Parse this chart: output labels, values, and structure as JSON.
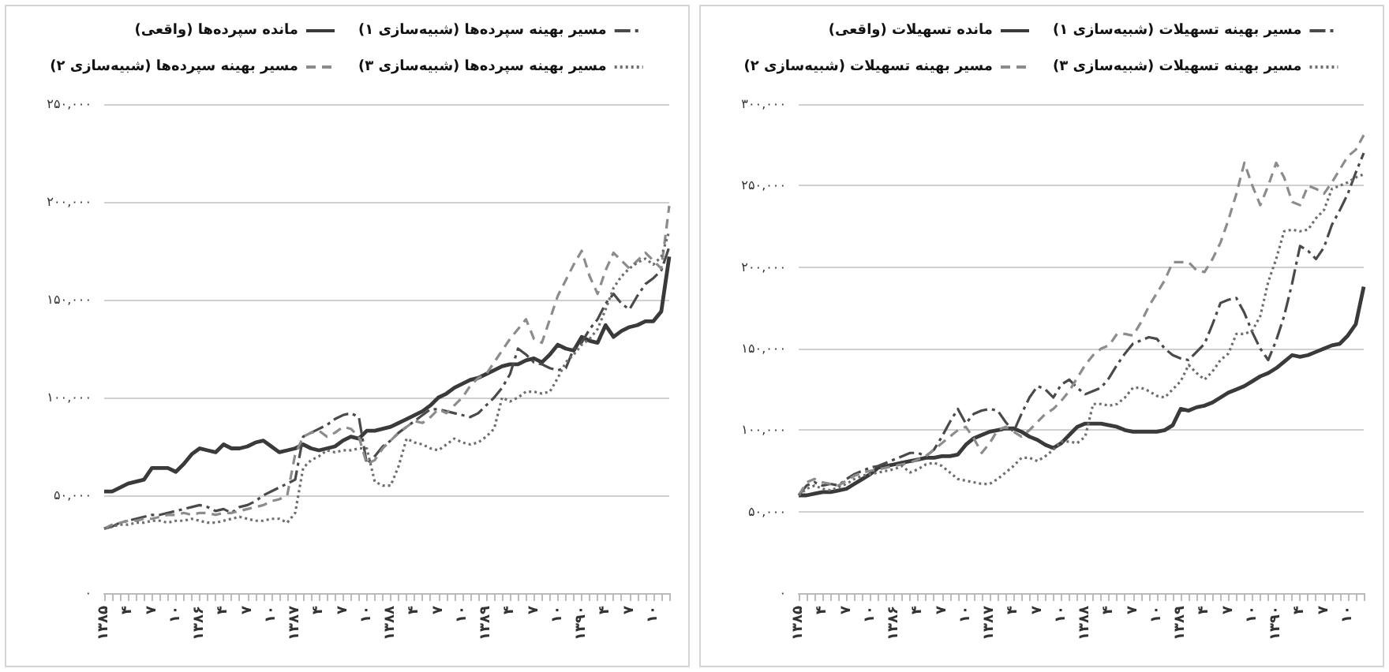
{
  "chart_data": [
    {
      "type": "line",
      "categories": [
        "۱۳۸۵",
        null,
        null,
        "۴",
        null,
        null,
        "۷",
        null,
        null,
        "۱۰",
        null,
        null,
        "۱۳۸۶",
        null,
        null,
        "۴",
        null,
        null,
        "۷",
        null,
        null,
        "۱۰",
        null,
        null,
        "۱۳۸۷",
        null,
        null,
        "۴",
        null,
        null,
        "۷",
        null,
        null,
        "۱۰",
        null,
        null,
        "۱۳۸۸",
        null,
        null,
        "۴",
        null,
        null,
        "۷",
        null,
        null,
        "۱۰",
        null,
        null,
        "۱۳۸۹",
        null,
        null,
        "۴",
        null,
        null,
        "۷",
        null,
        null,
        "۱۰",
        null,
        null,
        "۱۳۹۰",
        null,
        null,
        "۴",
        null,
        null,
        "۷",
        null,
        null,
        "۱۰",
        null,
        null
      ],
      "series": [
        {
          "name": "مانده سپرده‌ها (واقعی)",
          "color": "#3a3a3a",
          "line_style": "solid",
          "values": [
            52000,
            52000,
            54000,
            56000,
            57000,
            58000,
            64000,
            64000,
            64000,
            62000,
            66000,
            71000,
            74000,
            73000,
            72000,
            76000,
            74000,
            74000,
            75000,
            77000,
            78000,
            75000,
            72000,
            73000,
            74000,
            76000,
            74000,
            73000,
            74000,
            75000,
            78000,
            80000,
            79000,
            83000,
            83000,
            84000,
            85000,
            87000,
            89000,
            91000,
            93000,
            96000,
            100000,
            102000,
            105000,
            107000,
            109000,
            110000,
            112000,
            114000,
            116000,
            117000,
            117000,
            119000,
            120000,
            118000,
            122000,
            127000,
            125000,
            124000,
            131000,
            129000,
            128000,
            137000,
            131000,
            134000,
            136000,
            137000,
            139000,
            139000,
            144000,
            172000
          ]
        },
        {
          "name": "مسیر بهینه سپرده‌ها (شبیه‌سازی ۱)",
          "color": "#4a4a4a",
          "line_style": "dashdot",
          "values": [
            33000,
            34000,
            36000,
            37000,
            38000,
            39000,
            40000,
            40000,
            41000,
            42000,
            43000,
            44000,
            45000,
            44000,
            42000,
            43000,
            41000,
            44000,
            45000,
            47000,
            50000,
            52000,
            54000,
            56000,
            58000,
            80000,
            82000,
            84000,
            86000,
            89000,
            91000,
            92000,
            90000,
            66000,
            70000,
            75000,
            78000,
            82000,
            85000,
            88000,
            91000,
            94000,
            94000,
            93000,
            92000,
            91000,
            90000,
            92000,
            96000,
            100000,
            105000,
            112000,
            125000,
            122000,
            118000,
            117000,
            115000,
            114000,
            115000,
            125000,
            128000,
            135000,
            140000,
            148000,
            153000,
            148000,
            145000,
            152000,
            158000,
            161000,
            165000,
            177000
          ]
        },
        {
          "name": "مسیر بهینه سپرده‌ها (شبیه‌سازی ۲)",
          "color": "#8c8c8c",
          "line_style": "dashed",
          "values": [
            33000,
            35000,
            36000,
            37000,
            37000,
            38000,
            38000,
            39000,
            40000,
            40000,
            41000,
            40000,
            41000,
            41000,
            40000,
            41000,
            41000,
            42000,
            43000,
            44000,
            45000,
            47000,
            48000,
            50000,
            71000,
            80000,
            82000,
            83000,
            80000,
            82000,
            85000,
            84000,
            80000,
            66000,
            68000,
            74000,
            78000,
            82000,
            85000,
            88000,
            87000,
            90000,
            94000,
            92000,
            96000,
            100000,
            106000,
            110000,
            112000,
            118000,
            124000,
            130000,
            135000,
            140000,
            130000,
            128000,
            140000,
            152000,
            160000,
            168000,
            175000,
            162000,
            153000,
            165000,
            174000,
            170000,
            166000,
            170000,
            174000,
            170000,
            166000,
            198000
          ]
        },
        {
          "name": "مسیر بهینه سپرده‌ها (شبیه‌سازی ۳)",
          "color": "#6e6e6e",
          "line_style": "dotted",
          "values": [
            33000,
            34000,
            35000,
            35000,
            36000,
            36000,
            37000,
            37000,
            36000,
            37000,
            37000,
            38000,
            37000,
            36000,
            36000,
            37000,
            38000,
            39000,
            38000,
            37000,
            37000,
            38000,
            38000,
            36000,
            41000,
            64000,
            68000,
            70000,
            73000,
            72000,
            73000,
            73000,
            74000,
            74000,
            57000,
            55000,
            55000,
            65000,
            79000,
            77000,
            76000,
            74000,
            73000,
            76000,
            79000,
            77000,
            76000,
            77000,
            80000,
            84000,
            100000,
            98000,
            100000,
            103000,
            103000,
            102000,
            103000,
            110000,
            118000,
            122000,
            127000,
            130000,
            135000,
            145000,
            156000,
            162000,
            166000,
            169000,
            171000,
            168000,
            172000,
            185000
          ]
        }
      ],
      "ylim": [
        0,
        250000
      ],
      "yticks": [
        {
          "value": 0,
          "label": "۰"
        },
        {
          "value": 50000,
          "label": "۵۰,۰۰۰"
        },
        {
          "value": 100000,
          "label": "۱۰۰,۰۰۰"
        },
        {
          "value": 150000,
          "label": "۱۵۰,۰۰۰"
        },
        {
          "value": 200000,
          "label": "۲۰۰,۰۰۰"
        },
        {
          "value": 250000,
          "label": "۲۵۰,۰۰۰"
        }
      ],
      "grid": "y",
      "legend": "top"
    },
    {
      "type": "line",
      "categories": [
        "۱۳۸۵",
        null,
        null,
        "۴",
        null,
        null,
        "۷",
        null,
        null,
        "۱۰",
        null,
        null,
        "۱۳۸۶",
        null,
        null,
        "۴",
        null,
        null,
        "۷",
        null,
        null,
        "۱۰",
        null,
        null,
        "۱۳۸۷",
        null,
        null,
        "۴",
        null,
        null,
        "۷",
        null,
        null,
        "۱۰",
        null,
        null,
        "۱۳۸۸",
        null,
        null,
        "۴",
        null,
        null,
        "۷",
        null,
        null,
        "۱۰",
        null,
        null,
        "۱۳۸۹",
        null,
        null,
        "۴",
        null,
        null,
        "۷",
        null,
        null,
        "۱۰",
        null,
        null,
        "۱۳۹۰",
        null,
        null,
        "۴",
        null,
        null,
        "۷",
        null,
        null,
        "۱۰",
        null,
        null
      ],
      "series": [
        {
          "name": "مانده تسهیلات (واقعی)",
          "color": "#3a3a3a",
          "line_style": "solid",
          "values": [
            60000,
            60000,
            61000,
            62000,
            62000,
            63000,
            64000,
            67000,
            70000,
            73000,
            77000,
            78000,
            79000,
            80000,
            81000,
            82000,
            83000,
            83000,
            84000,
            84000,
            85000,
            91000,
            95000,
            97000,
            99000,
            100000,
            101000,
            101000,
            99000,
            96000,
            94000,
            91000,
            89000,
            92000,
            97000,
            102000,
            104000,
            104000,
            104000,
            103000,
            102000,
            100000,
            99000,
            99000,
            99000,
            99000,
            100000,
            103000,
            113000,
            112000,
            114000,
            115000,
            117000,
            120000,
            123000,
            125000,
            127000,
            130000,
            133000,
            135000,
            138000,
            142000,
            146000,
            145000,
            146000,
            148000,
            150000,
            152000,
            153000,
            158000,
            165000,
            188000
          ]
        },
        {
          "name": "مسیر بهینه تسهیلات (شبیه‌سازی ۱)",
          "color": "#4a4a4a",
          "line_style": "dashdot",
          "values": [
            60000,
            66000,
            68000,
            66000,
            67000,
            66000,
            70000,
            73000,
            75000,
            77000,
            78000,
            80000,
            82000,
            84000,
            86000,
            86000,
            84000,
            88000,
            96000,
            105000,
            113000,
            104000,
            110000,
            112000,
            113000,
            112000,
            105000,
            99000,
            110000,
            120000,
            127000,
            125000,
            120000,
            128000,
            131000,
            126000,
            122000,
            124000,
            126000,
            132000,
            140000,
            147000,
            153000,
            155000,
            157000,
            156000,
            150000,
            146000,
            144000,
            143000,
            148000,
            153000,
            165000,
            178000,
            180000,
            181000,
            172000,
            160000,
            150000,
            143000,
            155000,
            170000,
            190000,
            213000,
            210000,
            205000,
            212000,
            226000,
            235000,
            245000,
            258000,
            270000
          ]
        },
        {
          "name": "مسیر بهینه تسهیلات (شبیه‌سازی ۲)",
          "color": "#8c8c8c",
          "line_style": "dashed",
          "values": [
            60000,
            68000,
            70000,
            68000,
            67000,
            66000,
            69000,
            72000,
            74000,
            75000,
            76000,
            77000,
            78000,
            79000,
            80000,
            82000,
            84000,
            88000,
            92000,
            96000,
            100000,
            102000,
            95000,
            86000,
            92000,
            100000,
            102000,
            99000,
            96000,
            100000,
            105000,
            110000,
            113000,
            118000,
            124000,
            132000,
            140000,
            146000,
            150000,
            152000,
            159000,
            159000,
            158000,
            166000,
            176000,
            184000,
            192000,
            203000,
            203000,
            203000,
            198000,
            197000,
            205000,
            215000,
            229000,
            245000,
            264000,
            250000,
            238000,
            250000,
            264000,
            255000,
            240000,
            238000,
            250000,
            248000,
            245000,
            252000,
            260000,
            268000,
            272000,
            281000
          ]
        },
        {
          "name": "مسیر بهینه تسهیلات (شبیه‌سازی ۳)",
          "color": "#6e6e6e",
          "line_style": "dotted",
          "values": [
            60000,
            64000,
            66000,
            64000,
            63000,
            65000,
            67000,
            70000,
            72000,
            73000,
            74000,
            75000,
            76000,
            78000,
            74000,
            76000,
            79000,
            80000,
            78000,
            74000,
            70000,
            69000,
            68000,
            67000,
            67000,
            70000,
            74000,
            78000,
            83000,
            83000,
            81000,
            84000,
            88000,
            93000,
            93000,
            92000,
            96000,
            116000,
            116000,
            115000,
            116000,
            120000,
            126000,
            126000,
            124000,
            121000,
            120000,
            125000,
            130000,
            140000,
            135000,
            131000,
            136000,
            143000,
            147000,
            159000,
            159000,
            161000,
            170000,
            191000,
            205000,
            222000,
            223000,
            222000,
            223000,
            230000,
            235000,
            248000,
            250000,
            252000,
            255000,
            257000
          ]
        }
      ],
      "ylim": [
        0,
        300000
      ],
      "yticks": [
        {
          "value": 0,
          "label": "۰"
        },
        {
          "value": 50000,
          "label": "۵۰,۰۰۰"
        },
        {
          "value": 100000,
          "label": "۱۰۰,۰۰۰"
        },
        {
          "value": 150000,
          "label": "۱۵۰,۰۰۰"
        },
        {
          "value": 200000,
          "label": "۲۰۰,۰۰۰"
        },
        {
          "value": 250000,
          "label": "۲۵۰,۰۰۰"
        },
        {
          "value": 300000,
          "label": "۳۰۰,۰۰۰"
        }
      ],
      "grid": "y",
      "legend": "top"
    }
  ]
}
